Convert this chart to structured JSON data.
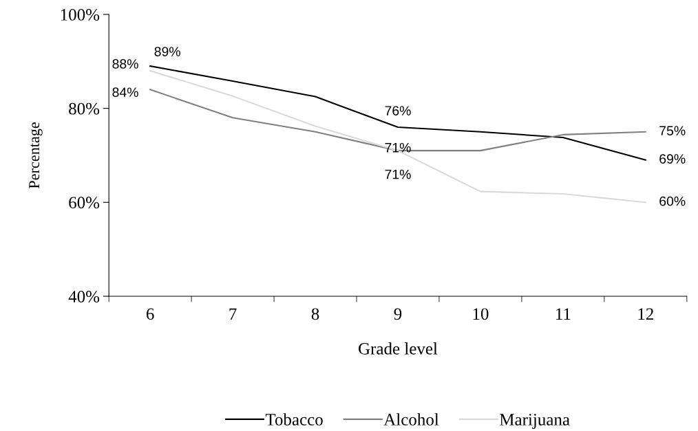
{
  "chart_data": {
    "type": "line",
    "xlabel": "Grade level",
    "ylabel": "Percentage",
    "categories": [
      "6",
      "7",
      "8",
      "9",
      "10",
      "11",
      "12"
    ],
    "series": [
      {
        "name": "Tobacco",
        "color": "#000000",
        "values": [
          89,
          85.8,
          82.5,
          76,
          75,
          73.8,
          69
        ],
        "value_labels": [
          "89%",
          null,
          null,
          "76%",
          null,
          null,
          "69%"
        ]
      },
      {
        "name": "Alcohol",
        "color": "#808080",
        "values": [
          84,
          78,
          75,
          71,
          71,
          74.4,
          75
        ],
        "value_labels": [
          "84%",
          null,
          null,
          "71%",
          null,
          null,
          "75%"
        ]
      },
      {
        "name": "Marijuana",
        "color": "#d9d9d9",
        "values": [
          88,
          82.6,
          76.2,
          71,
          62.3,
          61.8,
          60
        ],
        "value_labels": [
          "88%",
          null,
          null,
          "71%",
          null,
          null,
          "60%"
        ]
      }
    ],
    "ylim": [
      40,
      100
    ],
    "yticks": [
      {
        "value": 40,
        "label": "40%"
      },
      {
        "value": 60,
        "label": "60%"
      },
      {
        "value": 80,
        "label": "80%"
      },
      {
        "value": 100,
        "label": "100%"
      }
    ],
    "grid": false,
    "legend": "bottom",
    "marker": "none",
    "line_style": "solid"
  }
}
